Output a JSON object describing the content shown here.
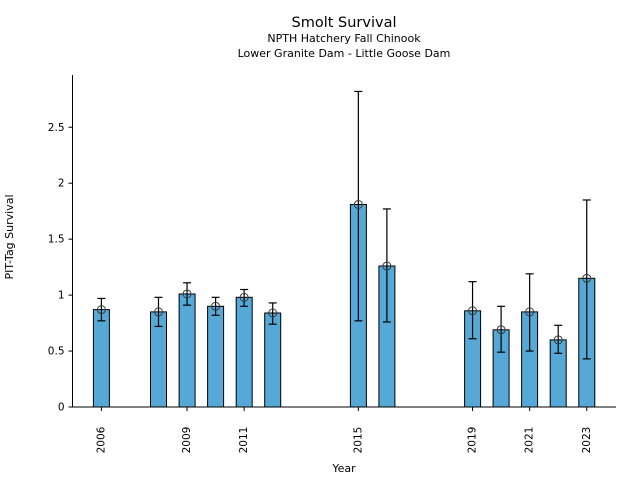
{
  "chart_data": {
    "type": "bar",
    "title": "Smolt Survival",
    "subtitle1": "NPTH Hatchery Fall Chinook",
    "subtitle2": "Lower Granite Dam - Little Goose Dam",
    "xlabel": "Year",
    "ylabel": "PIT-Tag Survival",
    "years": [
      2006,
      2008,
      2009,
      2010,
      2011,
      2012,
      2015,
      2016,
      2019,
      2020,
      2021,
      2022,
      2023
    ],
    "values": [
      0.87,
      0.85,
      1.01,
      0.9,
      0.98,
      0.84,
      1.81,
      1.26,
      0.86,
      0.69,
      0.85,
      0.6,
      1.15
    ],
    "error_low": [
      0.77,
      0.72,
      0.91,
      0.82,
      0.9,
      0.74,
      0.77,
      0.76,
      0.61,
      0.49,
      0.5,
      0.48,
      0.43
    ],
    "error_high": [
      0.97,
      0.98,
      1.11,
      0.98,
      1.05,
      0.93,
      2.82,
      1.77,
      1.12,
      0.9,
      1.19,
      0.73,
      1.85
    ],
    "x_tick_years": [
      2006,
      2009,
      2011,
      2015,
      2019,
      2021,
      2023
    ],
    "y_ticks": [
      0,
      0.5,
      1,
      1.5,
      2,
      2.5
    ],
    "y_tick_labels": [
      "0",
      "0.5",
      "1",
      "1.5",
      "2",
      "2.5"
    ],
    "ylim": [
      0,
      2.95
    ],
    "xlim": [
      2004.9,
      2024.0
    ],
    "grid": false,
    "legend": null,
    "marker": "open-circle",
    "colors": {
      "bar_fill": "#56A8D6",
      "bar_edge": "#000000",
      "error_bar": "#000000",
      "marker_edge": "#3a3a3a",
      "axis": "#000000"
    }
  }
}
